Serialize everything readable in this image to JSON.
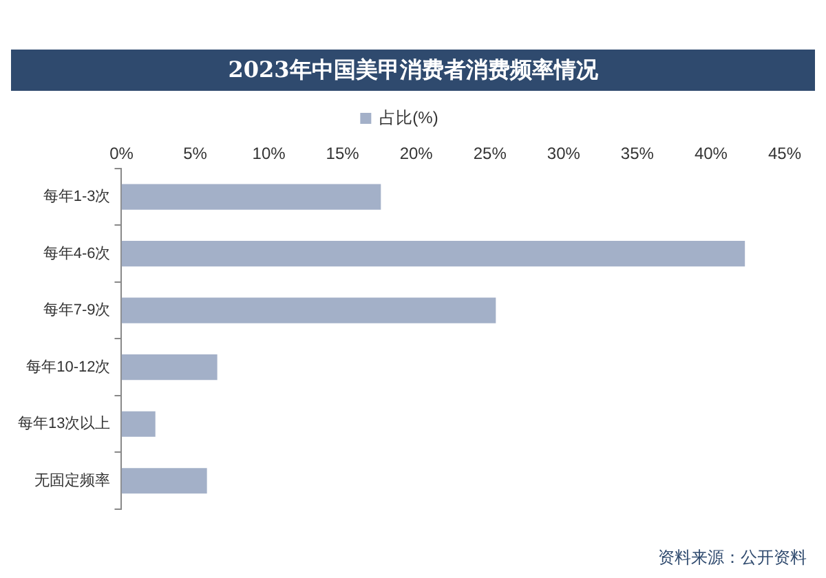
{
  "chart_data": {
    "type": "bar",
    "orientation": "horizontal",
    "title": "2023年中国美甲消费者消费频率情况",
    "categories": [
      "每年1-3次",
      "每年4-6次",
      "每年7-9次",
      "每年10-12次",
      "每年13次以上",
      "无固定频率"
    ],
    "series": [
      {
        "name": "占比(%)",
        "color": "#a3b0c8",
        "values": [
          17.6,
          42.3,
          25.4,
          6.5,
          2.3,
          5.8
        ]
      }
    ],
    "xlim": [
      0,
      45
    ],
    "xticks": [
      {
        "value": 0,
        "label": "0%"
      },
      {
        "value": 5,
        "label": "5%"
      },
      {
        "value": 10,
        "label": "10%"
      },
      {
        "value": 15,
        "label": "15%"
      },
      {
        "value": 20,
        "label": "20%"
      },
      {
        "value": 25,
        "label": "25%"
      },
      {
        "value": 30,
        "label": "30%"
      },
      {
        "value": 35,
        "label": "35%"
      },
      {
        "value": 40,
        "label": "40%"
      },
      {
        "value": 45,
        "label": "45%"
      }
    ],
    "grid": false,
    "legend": "top",
    "annotations": [
      "资料来源：公开资料"
    ]
  }
}
